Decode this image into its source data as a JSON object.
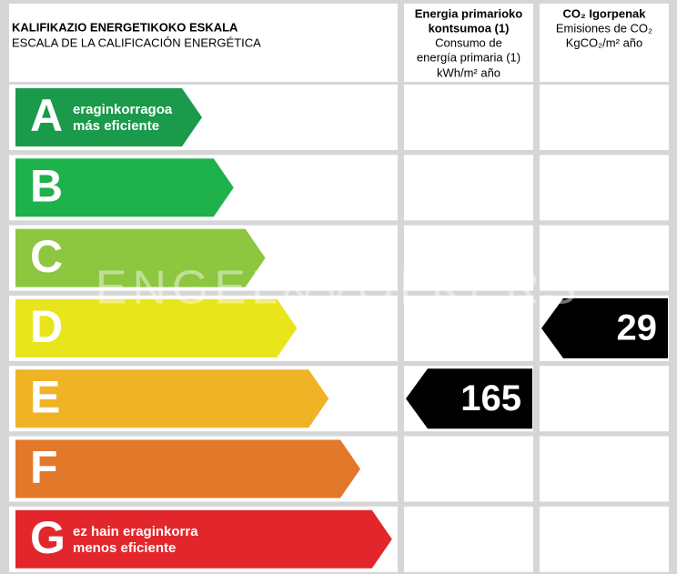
{
  "header": {
    "title_eu": "KALIFIKAZIO ENERGETIKOKO ESKALA",
    "title_es": "ESCALA DE LA CALIFICACIÓN ENERGÉTICA"
  },
  "energy": {
    "title": [
      "Energia primarioko",
      "kontsumoa (1)"
    ],
    "subtitle": [
      "Consumo de",
      "energía primaria (1)"
    ],
    "unit": "kWh/m² año",
    "value": 165,
    "rating": "E"
  },
  "co2": {
    "title": "CO₂ Igorpenak",
    "subtitle": "Emisiones de CO₂",
    "unit": "KgCO₂/m² año",
    "value": 29,
    "rating": "D"
  },
  "ratings": [
    {
      "letter": "A",
      "color": "#1a9a4a",
      "label_eu": "eraginkorragoa",
      "label_es": "más eficiente"
    },
    {
      "letter": "B",
      "color": "#1fb14c"
    },
    {
      "letter": "C",
      "color": "#8dc63f"
    },
    {
      "letter": "D",
      "color": "#e8e51c"
    },
    {
      "letter": "E",
      "color": "#f0b325"
    },
    {
      "letter": "F",
      "color": "#e2782a"
    },
    {
      "letter": "G",
      "color": "#e3262b",
      "label_eu": "ez hain eraginkorra",
      "label_es": "menos eficiente"
    }
  ],
  "watermark": "ENGEL&VÖLKERS"
}
